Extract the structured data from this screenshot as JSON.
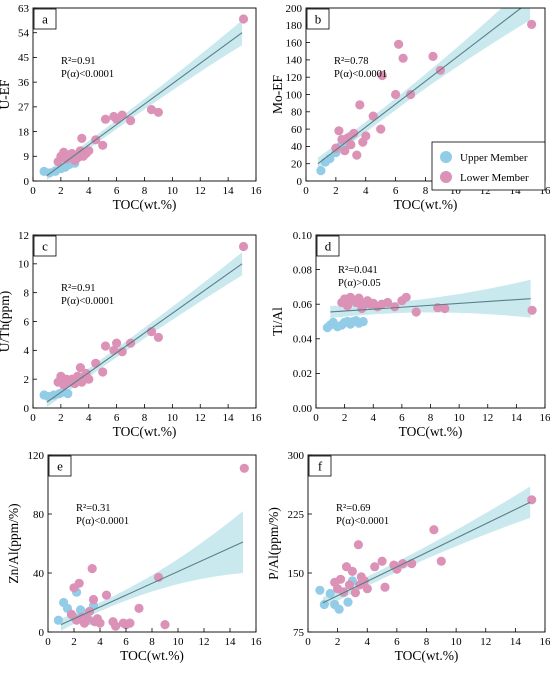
{
  "legend": {
    "items": [
      {
        "label": "Upper Member",
        "color": "#92cce6"
      },
      {
        "label": "Lower Member",
        "color": "#db92b6"
      }
    ]
  },
  "colors": {
    "upper": "#92cce6",
    "lower": "#db92b6",
    "band": "#b7e1ea",
    "fit_line": "#5a7f86"
  },
  "chart_data": [
    {
      "type": "scatter",
      "panel_label": "a",
      "xlabel": "TOC(wt.%)",
      "ylabel": "U-EF",
      "xlim": [
        0,
        16
      ],
      "ylim": [
        0,
        63
      ],
      "xticks": [
        0,
        2,
        4,
        6,
        8,
        10,
        12,
        14,
        16
      ],
      "yticks": [
        0,
        9,
        18,
        27,
        36,
        45,
        54,
        63
      ],
      "stat_lines": [
        "R²=0.91",
        "P(α)<0.0001"
      ],
      "fit": {
        "x": [
          1.0,
          15.0
        ],
        "y": [
          2.0,
          54.0
        ]
      },
      "band_width": [
        1.5,
        4.5
      ],
      "series": [
        {
          "name": "Upper Member",
          "x": [
            0.8,
            1.2,
            1.6,
            2.0,
            2.3,
            2.6,
            3.0
          ],
          "y": [
            3.5,
            3.0,
            3.5,
            4.5,
            5.0,
            6.0,
            6.5
          ]
        },
        {
          "name": "Lower Member",
          "x": [
            1.8,
            2.0,
            2.2,
            2.4,
            2.6,
            2.8,
            3.0,
            3.2,
            3.4,
            3.5,
            3.6,
            3.8,
            4.0,
            4.5,
            5.0,
            5.2,
            5.8,
            6.0,
            6.4,
            7.0,
            8.5,
            9.0,
            15.1
          ],
          "y": [
            7.0,
            9.0,
            10.5,
            8.0,
            9.5,
            10.0,
            7.5,
            8.5,
            11.0,
            15.5,
            9.0,
            10.0,
            11.0,
            15.0,
            13.0,
            22.5,
            23.5,
            22.5,
            24.0,
            22.0,
            26.0,
            25.0,
            59.0
          ]
        }
      ]
    },
    {
      "type": "scatter",
      "panel_label": "b",
      "xlabel": "TOC(wt.%)",
      "ylabel": "Mo-EF",
      "xlim": [
        0,
        16
      ],
      "ylim": [
        0,
        200
      ],
      "xticks": [
        0,
        2,
        4,
        6,
        8,
        10,
        12,
        14,
        16
      ],
      "yticks": [
        0,
        20,
        40,
        60,
        80,
        100,
        120,
        140,
        160,
        180,
        200
      ],
      "stat_lines": [
        "R²=0.78",
        "P(α)<0.0001"
      ],
      "fit": {
        "x": [
          0.8,
          15.0
        ],
        "y": [
          20.0,
          208.0
        ]
      },
      "band_width": [
        6,
        22
      ],
      "series": [
        {
          "name": "Upper Member",
          "x": [
            1.0,
            1.3,
            1.6,
            2.0,
            2.3,
            2.6,
            3.0
          ],
          "y": [
            12.0,
            22.0,
            26.0,
            33.0,
            40.0,
            45.0,
            52.0
          ]
        },
        {
          "name": "Lower Member",
          "x": [
            2.0,
            2.2,
            2.4,
            2.6,
            2.8,
            3.0,
            3.2,
            3.4,
            3.6,
            3.8,
            4.0,
            4.5,
            5.0,
            5.1,
            6.0,
            6.2,
            6.5,
            7.0,
            8.5,
            9.0,
            15.1
          ],
          "y": [
            38.0,
            58.0,
            48.0,
            35.0,
            50.0,
            42.0,
            55.0,
            30.0,
            88.0,
            45.0,
            52.0,
            75.0,
            60.0,
            122.0,
            100.0,
            158.0,
            142.0,
            100.0,
            144.0,
            128.0,
            181.0
          ]
        }
      ]
    },
    {
      "type": "scatter",
      "panel_label": "c",
      "xlabel": "TOC(wt.%)",
      "ylabel": "U/Th(ppm)",
      "xlim": [
        0,
        16
      ],
      "ylim": [
        0,
        12
      ],
      "xticks": [
        0,
        2,
        4,
        6,
        8,
        10,
        12,
        14,
        16
      ],
      "yticks": [
        0,
        2,
        4,
        6,
        8,
        10,
        12
      ],
      "stat_lines": [
        "R²=0.91",
        "P(α)<0.0001"
      ],
      "fit": {
        "x": [
          1.0,
          15.0
        ],
        "y": [
          0.4,
          10.0
        ]
      },
      "band_width": [
        0.3,
        0.8
      ],
      "series": [
        {
          "name": "Upper Member",
          "x": [
            0.8,
            1.1,
            1.5,
            1.9,
            2.2,
            2.5
          ],
          "y": [
            0.9,
            0.8,
            0.9,
            1.0,
            1.1,
            1.0
          ]
        },
        {
          "name": "Lower Member",
          "x": [
            1.8,
            2.0,
            2.2,
            2.4,
            2.6,
            2.8,
            3.0,
            3.2,
            3.4,
            3.5,
            3.6,
            3.8,
            4.0,
            4.5,
            5.0,
            5.2,
            5.8,
            6.0,
            6.4,
            7.0,
            8.5,
            9.0,
            15.1
          ],
          "y": [
            1.8,
            2.2,
            1.6,
            2.0,
            1.8,
            2.0,
            1.7,
            2.2,
            2.8,
            1.8,
            2.1,
            2.4,
            2.0,
            3.1,
            2.5,
            4.3,
            4.0,
            4.5,
            3.9,
            4.5,
            5.3,
            4.9,
            11.2
          ]
        }
      ]
    },
    {
      "type": "scatter",
      "panel_label": "d",
      "xlabel": "TOC(wt.%)",
      "ylabel": "Ti/Al",
      "xlim": [
        0,
        16
      ],
      "ylim": [
        0,
        0.1
      ],
      "xticks": [
        0,
        2,
        4,
        6,
        8,
        10,
        12,
        14,
        16
      ],
      "yticks": [
        "0.00",
        "0.02",
        "0.04",
        "0.06",
        "0.08",
        "0.10"
      ],
      "stat_lines": [
        "R²=0.041",
        "P(α)>0.05"
      ],
      "fit": {
        "x": [
          1.0,
          15.0
        ],
        "y": [
          0.0555,
          0.0632
        ]
      },
      "band_width": [
        0.003,
        0.011
      ],
      "series": [
        {
          "name": "Upper Member",
          "x": [
            0.8,
            1.0,
            1.2,
            1.5,
            1.8,
            2.0,
            2.2,
            2.4,
            2.6,
            2.8,
            3.0,
            3.3
          ],
          "y": [
            0.0465,
            0.048,
            0.0495,
            0.047,
            0.048,
            0.0495,
            0.05,
            0.0485,
            0.05,
            0.0505,
            0.049,
            0.05
          ]
        },
        {
          "name": "Lower Member",
          "x": [
            1.8,
            2.0,
            2.2,
            2.4,
            2.6,
            2.8,
            3.0,
            3.2,
            3.4,
            3.6,
            3.8,
            4.0,
            4.3,
            4.6,
            5.0,
            5.5,
            6.0,
            6.3,
            7.0,
            8.5,
            9.0,
            15.1
          ],
          "y": [
            0.061,
            0.063,
            0.059,
            0.064,
            0.062,
            0.061,
            0.0635,
            0.0575,
            0.06,
            0.062,
            0.06,
            0.0605,
            0.0585,
            0.06,
            0.061,
            0.0585,
            0.062,
            0.064,
            0.0555,
            0.058,
            0.0575,
            0.0565
          ]
        }
      ]
    },
    {
      "type": "scatter",
      "panel_label": "e",
      "xlabel": "TOC(wt.%)",
      "ylabel": "Zn/Al(ppm/%)",
      "xlim": [
        0,
        16
      ],
      "ylim": [
        0,
        120
      ],
      "xticks": [
        0,
        2,
        4,
        6,
        8,
        10,
        12,
        14,
        16
      ],
      "yticks": [
        0,
        40,
        80,
        120
      ],
      "stat_lines": [
        "R²=0.31",
        "P(α)<0.0001"
      ],
      "fit": {
        "x": [
          1.0,
          15.0
        ],
        "y": [
          5.0,
          61.0
        ]
      },
      "band_width": [
        3,
        21
      ],
      "series": [
        {
          "name": "Upper Member",
          "x": [
            0.8,
            1.2,
            1.5,
            2.0,
            2.2,
            2.5,
            2.8,
            3.2,
            3.5
          ],
          "y": [
            8.0,
            20.0,
            16.0,
            10.0,
            27.0,
            15.0,
            12.0,
            8.0,
            18.0
          ]
        },
        {
          "name": "Lower Member",
          "x": [
            1.8,
            2.0,
            2.2,
            2.4,
            2.6,
            2.8,
            3.0,
            3.2,
            3.4,
            3.5,
            3.6,
            3.8,
            4.0,
            4.5,
            5.0,
            5.2,
            5.8,
            6.0,
            6.3,
            7.0,
            8.5,
            9.0,
            15.1
          ],
          "y": [
            12.0,
            30.0,
            8.0,
            33.0,
            10.0,
            6.0,
            9.0,
            14.0,
            43.0,
            22.0,
            7.0,
            9.0,
            6.0,
            25.0,
            7.0,
            4.0,
            6.0,
            5.0,
            6.0,
            16.0,
            37.0,
            5.0,
            111.0
          ]
        }
      ]
    },
    {
      "type": "scatter",
      "panel_label": "f",
      "xlabel": "TOC(wt.%)",
      "ylabel": "P/Al(ppm/%)",
      "xlim": [
        0,
        16
      ],
      "ylim": [
        75,
        300
      ],
      "xticks": [
        0,
        2,
        4,
        6,
        8,
        10,
        12,
        14,
        16
      ],
      "yticks": [
        75,
        150,
        225,
        300
      ],
      "stat_lines": [
        "R²=0.69",
        "P(α)<0.0001"
      ],
      "fit": {
        "x": [
          1.0,
          15.0
        ],
        "y": [
          112.0,
          240.0
        ]
      },
      "band_width": [
        6,
        20
      ],
      "series": [
        {
          "name": "Upper Member",
          "x": [
            0.8,
            1.1,
            1.5,
            1.8,
            2.1,
            2.4,
            2.7,
            3.0
          ],
          "y": [
            128.0,
            110.0,
            124.0,
            110.0,
            104.0,
            125.0,
            113.0,
            140.0
          ]
        },
        {
          "name": "Lower Member",
          "x": [
            1.8,
            2.0,
            2.2,
            2.4,
            2.6,
            2.8,
            3.0,
            3.2,
            3.4,
            3.5,
            3.6,
            3.8,
            4.0,
            4.5,
            5.0,
            5.2,
            5.8,
            6.0,
            6.4,
            7.0,
            8.5,
            9.0,
            15.1
          ],
          "y": [
            138.0,
            130.0,
            142.0,
            126.0,
            158.0,
            135.0,
            152.0,
            125.0,
            186.0,
            135.0,
            145.0,
            140.0,
            130.0,
            158.0,
            165.0,
            132.0,
            160.0,
            155.0,
            162.0,
            162.0,
            205.0,
            165.0,
            243.0
          ]
        }
      ]
    }
  ]
}
